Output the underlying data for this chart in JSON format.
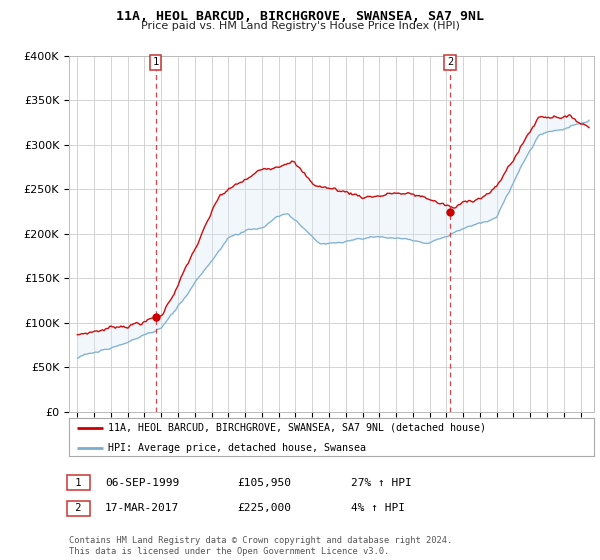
{
  "title": "11A, HEOL BARCUD, BIRCHGROVE, SWANSEA, SA7 9NL",
  "subtitle": "Price paid vs. HM Land Registry's House Price Index (HPI)",
  "ylim": [
    0,
    400000
  ],
  "yticks": [
    0,
    50000,
    100000,
    150000,
    200000,
    250000,
    300000,
    350000,
    400000
  ],
  "legend_line1": "11A, HEOL BARCUD, BIRCHGROVE, SWANSEA, SA7 9NL (detached house)",
  "legend_line2": "HPI: Average price, detached house, Swansea",
  "annotation1_date": "06-SEP-1999",
  "annotation1_price": "£105,950",
  "annotation1_hpi": "27% ↑ HPI",
  "annotation2_date": "17-MAR-2017",
  "annotation2_price": "£225,000",
  "annotation2_hpi": "4% ↑ HPI",
  "footer": "Contains HM Land Registry data © Crown copyright and database right 2024.\nThis data is licensed under the Open Government Licence v3.0.",
  "line_color_red": "#cc0000",
  "line_color_blue": "#7aadcf",
  "fill_color_blue": "#daeaf5",
  "annotation_line_color": "#cc3333",
  "background_color": "#ffffff",
  "grid_color": "#cccccc",
  "sale1_x": 1999.67,
  "sale1_y": 105950,
  "sale2_x": 2017.21,
  "sale2_y": 225000,
  "xlim_left": 1994.5,
  "xlim_right": 2025.8
}
